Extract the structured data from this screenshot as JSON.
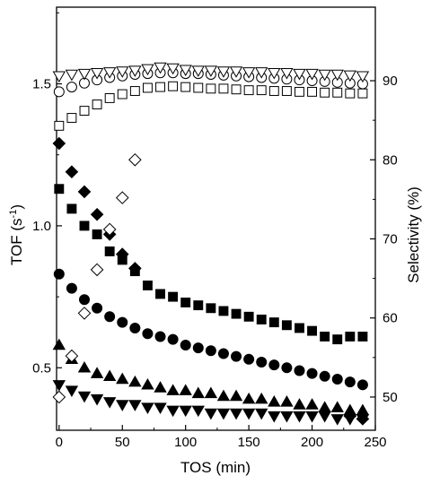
{
  "chart_data": {
    "type": "scatter",
    "xlabel": "TOS (min)",
    "ylabel_left": "TOF (s",
    "ylabel_left_sup": "-1",
    "ylabel_left_close": ")",
    "ylabel_right": "Selectivity (%)",
    "xlim": [
      -2,
      250
    ],
    "ylim_left": [
      0.28,
      1.77
    ],
    "ylim_right": [
      45.8,
      99.3
    ],
    "x_ticks": [
      0,
      50,
      100,
      150,
      200,
      250
    ],
    "x_tick_labels": [
      "0",
      "50",
      "100",
      "150",
      "200",
      "250"
    ],
    "y_left_ticks": [
      0.5,
      1.0,
      1.5
    ],
    "y_left_tick_labels": [
      "0.5",
      "1.0",
      "1.5"
    ],
    "y_right_ticks": [
      50,
      60,
      70,
      80,
      90
    ],
    "y_right_tick_labels": [
      "50",
      "60",
      "70",
      "80",
      "90"
    ],
    "grid": false,
    "series": [
      {
        "marker": "diamond",
        "filled": true,
        "axis": "left",
        "x": [
          0,
          10,
          20,
          30,
          40,
          50,
          60,
          230,
          240
        ],
        "y": [
          1.29,
          1.19,
          1.12,
          1.04,
          0.97,
          0.9,
          0.85,
          0.33,
          0.32
        ]
      },
      {
        "marker": "square",
        "filled": true,
        "axis": "left",
        "x": [
          0,
          10,
          20,
          30,
          40,
          50,
          60,
          70,
          80,
          90,
          100,
          110,
          120,
          130,
          140,
          150,
          160,
          170,
          180,
          190,
          200,
          210,
          220,
          230,
          240
        ],
        "y": [
          1.13,
          1.06,
          1.0,
          0.97,
          0.91,
          0.88,
          0.84,
          0.79,
          0.76,
          0.75,
          0.73,
          0.72,
          0.71,
          0.7,
          0.69,
          0.68,
          0.67,
          0.66,
          0.65,
          0.64,
          0.63,
          0.61,
          0.6,
          0.61,
          0.61
        ]
      },
      {
        "marker": "circle",
        "filled": true,
        "axis": "left",
        "x": [
          0,
          10,
          20,
          30,
          40,
          50,
          60,
          70,
          80,
          90,
          100,
          110,
          120,
          130,
          140,
          150,
          160,
          170,
          180,
          190,
          200,
          210,
          220,
          230,
          240
        ],
        "y": [
          0.83,
          0.78,
          0.74,
          0.71,
          0.68,
          0.66,
          0.64,
          0.62,
          0.61,
          0.6,
          0.58,
          0.57,
          0.56,
          0.55,
          0.54,
          0.53,
          0.52,
          0.51,
          0.5,
          0.49,
          0.48,
          0.47,
          0.46,
          0.45,
          0.44
        ]
      },
      {
        "marker": "triangle-up",
        "filled": true,
        "axis": "left",
        "x": [
          0,
          10,
          20,
          30,
          40,
          50,
          60,
          70,
          80,
          90,
          100,
          110,
          120,
          130,
          140,
          150,
          160,
          170,
          180,
          190,
          200,
          210,
          220,
          230,
          240
        ],
        "y": [
          0.58,
          0.53,
          0.5,
          0.48,
          0.47,
          0.46,
          0.45,
          0.44,
          0.43,
          0.42,
          0.42,
          0.41,
          0.41,
          0.4,
          0.4,
          0.39,
          0.39,
          0.38,
          0.38,
          0.37,
          0.37,
          0.36,
          0.36,
          0.35,
          0.35
        ]
      },
      {
        "marker": "triangle-down",
        "filled": true,
        "axis": "left",
        "x": [
          0,
          10,
          20,
          30,
          40,
          50,
          60,
          70,
          80,
          90,
          100,
          110,
          120,
          130,
          140,
          150,
          160,
          170,
          180,
          190,
          200,
          210,
          220,
          230,
          240
        ],
        "y": [
          0.44,
          0.42,
          0.4,
          0.39,
          0.38,
          0.37,
          0.37,
          0.36,
          0.36,
          0.35,
          0.35,
          0.35,
          0.34,
          0.34,
          0.34,
          0.34,
          0.34,
          0.33,
          0.33,
          0.33,
          0.33,
          0.33,
          0.32,
          0.32,
          0.32
        ]
      },
      {
        "marker": "diamond",
        "filled": false,
        "axis": "right",
        "x": [
          0,
          10,
          20,
          30,
          40,
          50,
          60
        ],
        "y": [
          50.0,
          55.2,
          60.6,
          66.1,
          71.2,
          75.2,
          80.0
        ]
      },
      {
        "marker": "square",
        "filled": false,
        "axis": "right",
        "x": [
          0,
          10,
          20,
          30,
          40,
          50,
          60,
          70,
          80,
          90,
          100,
          110,
          120,
          130,
          140,
          150,
          160,
          170,
          180,
          190,
          200,
          210,
          220,
          230,
          240
        ],
        "y": [
          84.3,
          85.3,
          86.2,
          87.0,
          87.8,
          88.3,
          88.7,
          89.1,
          89.2,
          89.3,
          89.2,
          89.1,
          89.0,
          89.0,
          88.9,
          88.8,
          88.8,
          88.7,
          88.7,
          88.6,
          88.6,
          88.5,
          88.5,
          88.4,
          88.4
        ]
      },
      {
        "marker": "circle",
        "filled": false,
        "axis": "right",
        "x": [
          0,
          10,
          20,
          30,
          40,
          50,
          60,
          70,
          80,
          90,
          100,
          110,
          120,
          130,
          140,
          150,
          160,
          170,
          180,
          190,
          200,
          210,
          220,
          230,
          240
        ],
        "y": [
          88.6,
          89.2,
          89.7,
          90.1,
          90.4,
          90.6,
          90.8,
          90.9,
          91.0,
          91.0,
          90.9,
          90.9,
          90.8,
          90.7,
          90.6,
          90.5,
          90.4,
          90.3,
          90.2,
          90.1,
          90.0,
          89.9,
          89.8,
          89.7,
          89.6
        ]
      },
      {
        "marker": "triangle-down",
        "filled": false,
        "axis": "right",
        "x": [
          0,
          10,
          20,
          30,
          40,
          50,
          60,
          70,
          80,
          90,
          100,
          110,
          120,
          130,
          140,
          150,
          160,
          170,
          180,
          190,
          200,
          210,
          220,
          230,
          240
        ],
        "y": [
          90.6,
          90.8,
          90.9,
          91.0,
          91.1,
          91.2,
          91.3,
          91.5,
          91.7,
          91.6,
          91.4,
          91.3,
          91.3,
          91.2,
          91.2,
          91.1,
          91.1,
          91.0,
          91.0,
          90.9,
          90.9,
          90.8,
          90.8,
          90.7,
          90.6
        ]
      }
    ]
  }
}
